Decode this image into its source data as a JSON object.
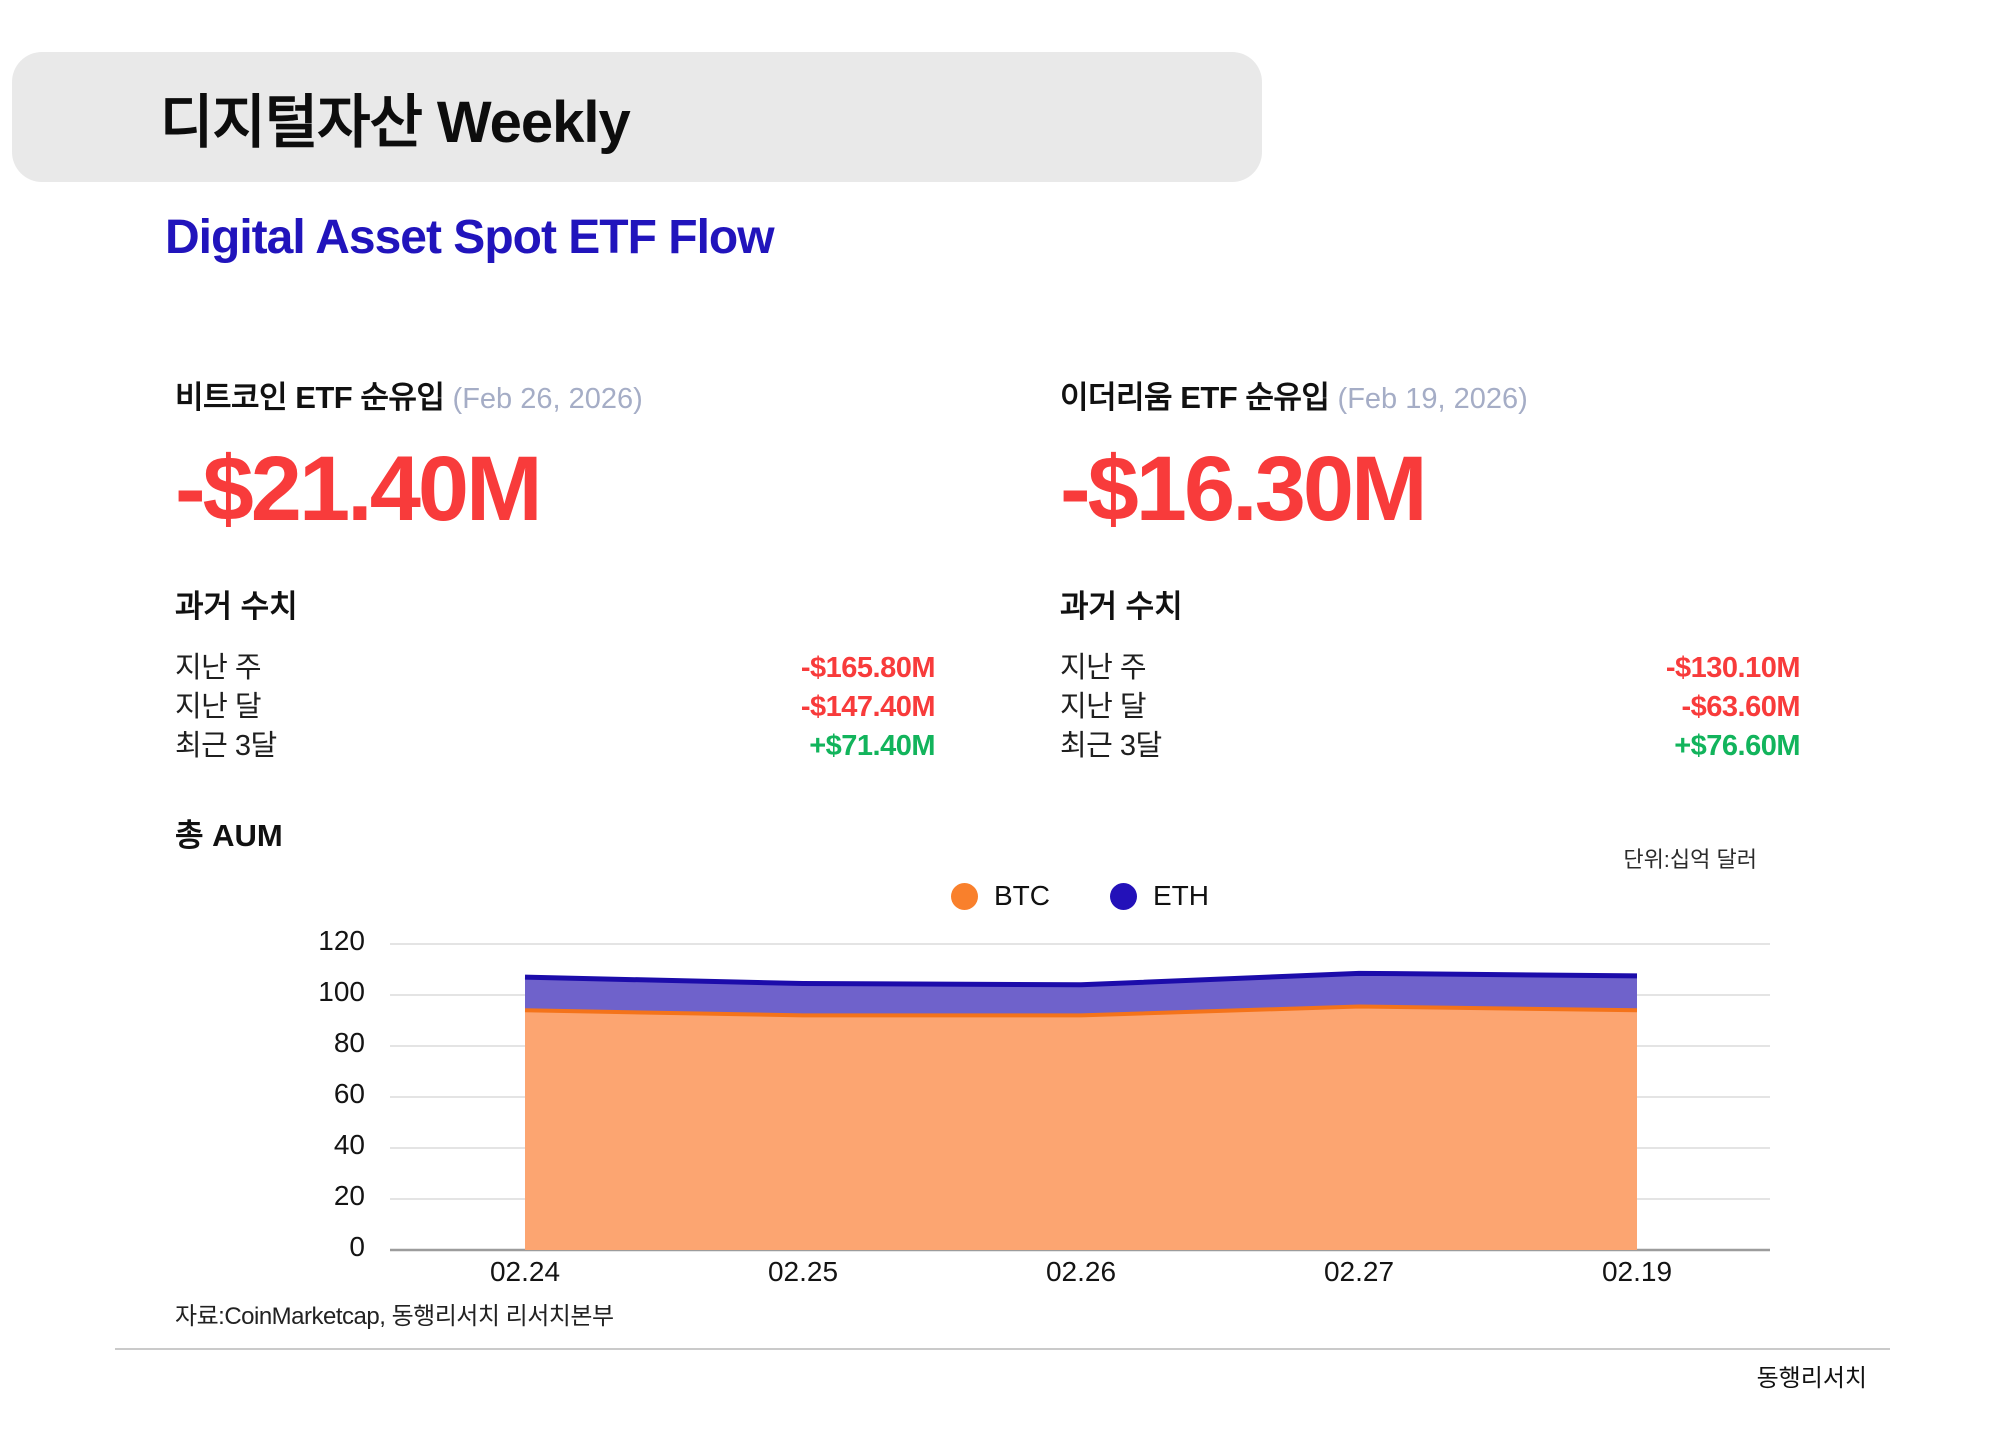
{
  "banner": {
    "title": "디지털자산 Weekly"
  },
  "subtitle": "Digital Asset Spot ETF Flow",
  "colors": {
    "negative": "#f83b3b",
    "positive": "#12b45c",
    "subtitle_blue": "#2114bc",
    "date_gray": "#a5adc6",
    "grid": "#dcdcdc",
    "axis": "#9c9c9c"
  },
  "sections": {
    "btc": {
      "title": "비트코인 ETF 순유입",
      "date": "(Feb 26, 2026)",
      "headline": "-$21.40M",
      "headline_direction": "negative",
      "history_title": "과거 수치",
      "rows": [
        {
          "label": "지난 주",
          "value": "-$165.80M",
          "direction": "negative"
        },
        {
          "label": "지난 달",
          "value": "-$147.40M",
          "direction": "negative"
        },
        {
          "label": "최근 3달",
          "value": "+$71.40M",
          "direction": "positive"
        }
      ]
    },
    "eth": {
      "title": "이더리움 ETF 순유입",
      "date": "(Feb 19, 2026)",
      "headline": "-$16.30M",
      "headline_direction": "negative",
      "history_title": "과거 수치",
      "rows": [
        {
          "label": "지난 주",
          "value": "-$130.10M",
          "direction": "negative"
        },
        {
          "label": "지난 달",
          "value": "-$63.60M",
          "direction": "negative"
        },
        {
          "label": "최근 3달",
          "value": "+$76.60M",
          "direction": "positive"
        }
      ]
    }
  },
  "chart": {
    "title": "총 AUM",
    "unit_label": "단위:십억 달러"
  },
  "chart_data": {
    "type": "area",
    "stacked": true,
    "title": "총 AUM",
    "unit": "billion USD (십억 달러)",
    "categories": [
      "02.24",
      "02.25",
      "02.26",
      "02.27",
      "02.19"
    ],
    "series": [
      {
        "name": "BTC",
        "values": [
          94,
          92,
          92,
          95.5,
          94
        ],
        "fill": "#fca571",
        "line": "#f4731a",
        "legend_dot": "#f9802c"
      },
      {
        "name": "ETH",
        "values": [
          13,
          12.5,
          12,
          13,
          13.5
        ],
        "fill": "#6f62cb",
        "line": "#1c0caa",
        "legend_dot": "#2311b9"
      }
    ],
    "totals": [
      107,
      104.5,
      104,
      108.5,
      107.5
    ],
    "ylim": [
      0,
      120
    ],
    "yticks": [
      0,
      20,
      40,
      60,
      80,
      100,
      120
    ],
    "grid": true,
    "legend_position": "top-center"
  },
  "footer": {
    "source": "자료:CoinMarketcap, 동행리서치 리서치본부",
    "brand": "동행리서치"
  }
}
